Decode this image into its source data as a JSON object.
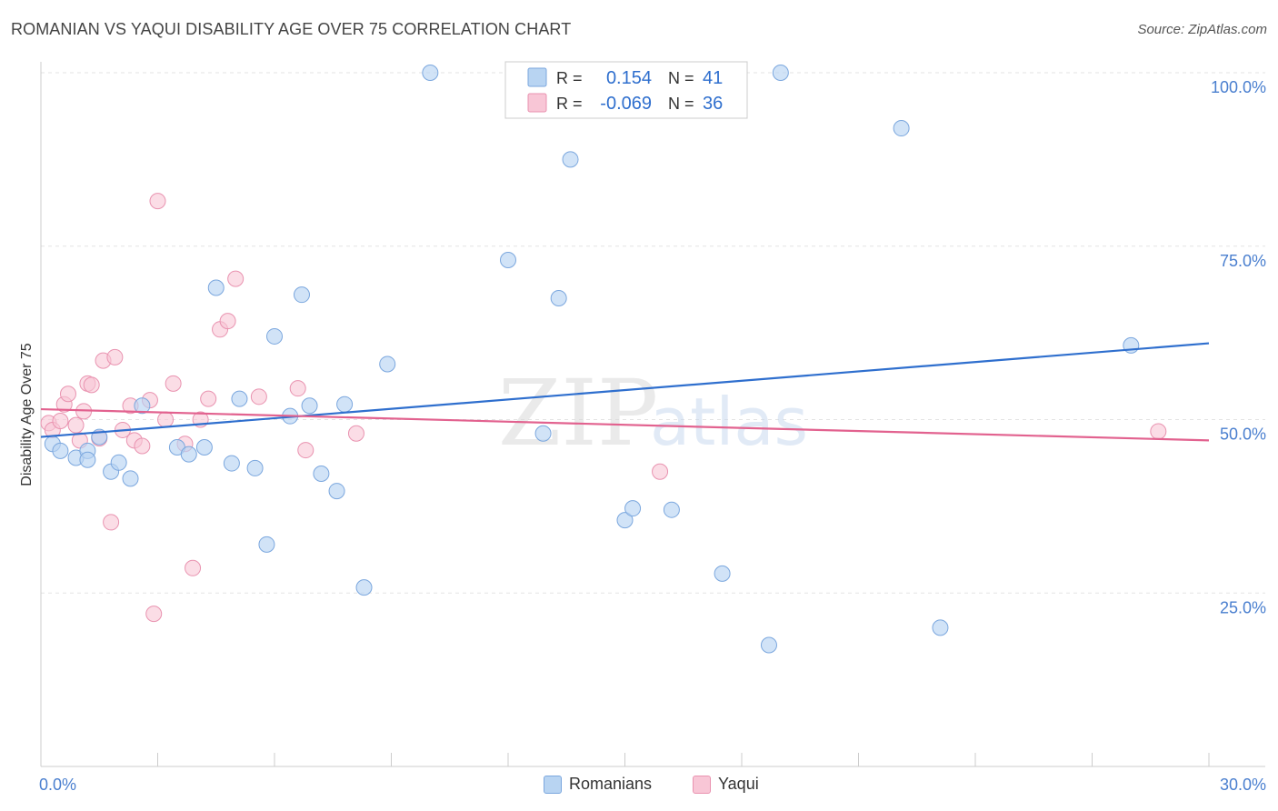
{
  "header": {
    "title": "ROMANIAN VS YAQUI DISABILITY AGE OVER 75 CORRELATION CHART",
    "source": "Source: ZipAtlas.com"
  },
  "watermark": {
    "zip": "ZIP",
    "atlas": "atlas"
  },
  "colors": {
    "romanians_fill": "#b8d4f2",
    "romanians_stroke": "#7ba7de",
    "romanians_line": "#2f6fce",
    "yaqui_fill": "#f8c6d6",
    "yaqui_stroke": "#e993b0",
    "yaqui_line": "#e2628f",
    "tick_label": "#4a7fcf",
    "grid": "#e3e3e3"
  },
  "legend": {
    "romanians": {
      "r_label": "R =",
      "r_value": "0.154",
      "n_label": "N =",
      "n_value": "41"
    },
    "yaqui": {
      "r_label": "R =",
      "r_value": "-0.069",
      "n_label": "N =",
      "n_value": "36"
    }
  },
  "chart_data": {
    "type": "scatter",
    "title": "ROMANIAN VS YAQUI DISABILITY AGE OVER 75 CORRELATION CHART",
    "xlabel": "",
    "ylabel": "Disability Age Over 75",
    "xlim": [
      0,
      30
    ],
    "ylim": [
      0,
      100
    ],
    "x_tick_labels": [
      "0.0%",
      "30.0%"
    ],
    "y_tick_labels": [
      "100.0%",
      "75.0%",
      "50.0%",
      "25.0%"
    ],
    "y_ticks": [
      100,
      75,
      50,
      25
    ],
    "grid": true,
    "legend_position": "top-center",
    "series": [
      {
        "name": "Romanians",
        "points": [
          [
            0.3,
            46.5
          ],
          [
            0.5,
            45.5
          ],
          [
            0.9,
            44.5
          ],
          [
            1.2,
            45.5
          ],
          [
            1.2,
            44.2
          ],
          [
            1.5,
            47.5
          ],
          [
            1.8,
            42.5
          ],
          [
            2.0,
            43.8
          ],
          [
            2.3,
            41.5
          ],
          [
            2.6,
            52.0
          ],
          [
            3.5,
            46.0
          ],
          [
            3.8,
            45.0
          ],
          [
            4.2,
            46.0
          ],
          [
            4.5,
            69.0
          ],
          [
            4.9,
            43.7
          ],
          [
            5.1,
            53.0
          ],
          [
            5.5,
            43.0
          ],
          [
            5.8,
            32.0
          ],
          [
            6.0,
            62.0
          ],
          [
            6.4,
            50.5
          ],
          [
            6.7,
            68.0
          ],
          [
            6.9,
            52.0
          ],
          [
            7.2,
            42.2
          ],
          [
            7.6,
            39.7
          ],
          [
            7.8,
            52.2
          ],
          [
            8.3,
            25.8
          ],
          [
            8.9,
            58.0
          ],
          [
            10.0,
            100.0
          ],
          [
            12.0,
            73.0
          ],
          [
            12.9,
            48.0
          ],
          [
            13.3,
            67.5
          ],
          [
            13.6,
            87.5
          ],
          [
            15.0,
            35.5
          ],
          [
            15.2,
            37.2
          ],
          [
            16.2,
            37.0
          ],
          [
            17.5,
            27.8
          ],
          [
            18.7,
            17.5
          ],
          [
            19.0,
            100.0
          ],
          [
            22.1,
            92.0
          ],
          [
            23.1,
            20.0
          ],
          [
            28.0,
            60.7
          ]
        ],
        "trend": [
          [
            0,
            47.5
          ],
          [
            30,
            61.0
          ]
        ]
      },
      {
        "name": "Yaqui",
        "points": [
          [
            0.2,
            49.5
          ],
          [
            0.3,
            48.5
          ],
          [
            0.5,
            49.8
          ],
          [
            0.6,
            52.2
          ],
          [
            0.7,
            53.7
          ],
          [
            0.9,
            49.2
          ],
          [
            1.0,
            47.0
          ],
          [
            1.1,
            51.2
          ],
          [
            1.2,
            55.2
          ],
          [
            1.3,
            55.0
          ],
          [
            1.5,
            47.3
          ],
          [
            1.6,
            58.5
          ],
          [
            1.8,
            35.2
          ],
          [
            1.9,
            59.0
          ],
          [
            2.1,
            48.5
          ],
          [
            2.3,
            52.0
          ],
          [
            2.4,
            47.0
          ],
          [
            2.6,
            46.2
          ],
          [
            2.8,
            52.8
          ],
          [
            2.9,
            22.0
          ],
          [
            3.0,
            81.5
          ],
          [
            3.2,
            50.0
          ],
          [
            3.4,
            55.2
          ],
          [
            3.7,
            46.5
          ],
          [
            3.9,
            28.6
          ],
          [
            4.1,
            50.0
          ],
          [
            4.3,
            53.0
          ],
          [
            4.6,
            63.0
          ],
          [
            4.8,
            64.2
          ],
          [
            5.0,
            70.3
          ],
          [
            5.6,
            53.3
          ],
          [
            6.6,
            54.5
          ],
          [
            6.8,
            45.6
          ],
          [
            8.1,
            48.0
          ],
          [
            15.9,
            42.5
          ],
          [
            28.7,
            48.3
          ]
        ],
        "trend": [
          [
            0,
            51.5
          ],
          [
            30,
            47.0
          ]
        ]
      }
    ]
  },
  "bottom_legend": {
    "romanians": "Romanians",
    "yaqui": "Yaqui"
  }
}
